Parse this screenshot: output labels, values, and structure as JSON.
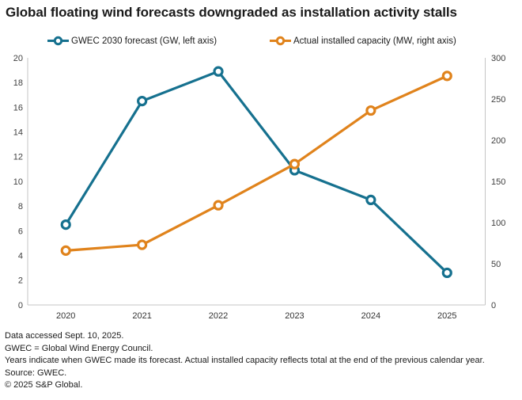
{
  "title": "Global floating wind forecasts downgraded as installation activity stalls",
  "colors": {
    "forecast": "#16718F",
    "actual": "#E0831C",
    "axis_line": "#c4c4c4",
    "text": "#1a1a1a",
    "background": "#ffffff"
  },
  "legend": {
    "forecast_label": "GWEC 2030 forecast (GW, left axis)",
    "actual_label": "Actual installed capacity (MW, right axis)"
  },
  "footnotes": [
    "Data accessed Sept. 10, 2025.",
    "GWEC = Global Wind Energy Council.",
    "Years indicate when GWEC made its forecast. Actual installed capacity reflects total at the end of the previous calendar year.",
    "Source: GWEC.",
    "© 2025 S&P Global."
  ],
  "chart_data": {
    "type": "line",
    "categories": [
      "2020",
      "2021",
      "2022",
      "2023",
      "2024",
      "2025"
    ],
    "series": [
      {
        "name": "GWEC 2030 forecast (GW, left axis)",
        "axis": "left",
        "color_key": "forecast",
        "values": [
          6.5,
          16.5,
          18.9,
          10.9,
          8.5,
          2.6
        ]
      },
      {
        "name": "Actual installed capacity (MW, right axis)",
        "axis": "right",
        "color_key": "actual",
        "values": [
          66,
          73,
          121,
          171,
          236,
          278
        ]
      }
    ],
    "left_axis": {
      "min": 0,
      "max": 20,
      "step": 2,
      "unit": "GW"
    },
    "right_axis": {
      "min": 0,
      "max": 300,
      "step": 50,
      "unit": "MW"
    },
    "grid": false,
    "legend_position": "top",
    "marker": "open-circle"
  }
}
